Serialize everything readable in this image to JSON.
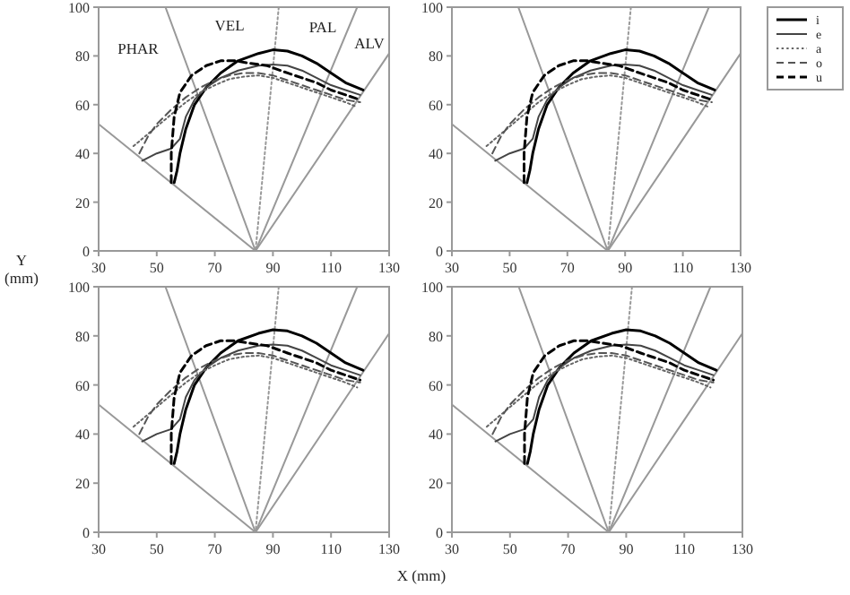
{
  "chart_data": [
    {
      "type": "line",
      "ylabel": "Y (mm)",
      "annotations": [
        "PHAR",
        "VEL",
        "PAL",
        "ALV"
      ],
      "xlim": [
        30,
        130
      ],
      "ylim": [
        0,
        100
      ],
      "xticks": [
        30,
        50,
        70,
        90,
        110,
        130
      ],
      "yticks": [
        0,
        20,
        40,
        60,
        80,
        100
      ],
      "legend": false,
      "marker": "none",
      "series": [
        {
          "color": "#999999",
          "line_style": "solid",
          "x": [
            30,
            84
          ],
          "values": [
            52,
            0
          ]
        },
        {
          "color": "#999999",
          "line_style": "solid",
          "x": [
            53,
            84
          ],
          "values": [
            100,
            0
          ]
        },
        {
          "color": "#999999",
          "line_style": "dotted",
          "x": [
            92,
            84
          ],
          "values": [
            100,
            0
          ]
        },
        {
          "color": "#999999",
          "line_style": "solid",
          "x": [
            119,
            84
          ],
          "values": [
            100,
            0
          ]
        },
        {
          "color": "#999999",
          "line_style": "solid",
          "x": [
            130,
            84
          ],
          "values": [
            81,
            0
          ]
        },
        {
          "color": "#000000",
          "line_style": "solid",
          "x": [
            56,
            57,
            58,
            60,
            63,
            67,
            72,
            78,
            85,
            90,
            95,
            100,
            105,
            110,
            115,
            121
          ],
          "values": [
            28,
            33,
            40,
            50,
            60,
            67,
            73,
            78,
            81,
            82.5,
            82,
            80,
            77,
            73,
            69,
            66
          ]
        },
        {
          "color": "#444444",
          "line_style": "solid",
          "x": [
            45,
            50,
            55,
            58,
            60,
            63,
            67,
            72,
            78,
            85,
            90,
            95,
            100,
            105,
            110,
            115,
            120
          ],
          "values": [
            37,
            40,
            42,
            46,
            55,
            62,
            67,
            71,
            74,
            76,
            76.5,
            76,
            74,
            71,
            68,
            66,
            64
          ]
        },
        {
          "color": "#666666",
          "line_style": "dotted",
          "x": [
            42,
            45,
            50,
            55,
            60,
            65,
            70,
            75,
            80,
            85,
            90,
            95,
            100,
            105,
            110,
            115,
            119
          ],
          "values": [
            43,
            46,
            51,
            56,
            61,
            65,
            68,
            70.5,
            71.5,
            72,
            71,
            69,
            67,
            65,
            63,
            61,
            59
          ]
        },
        {
          "color": "#555555",
          "line_style": "dashed",
          "x": [
            44,
            47,
            50,
            55,
            60,
            65,
            70,
            75,
            80,
            85,
            90,
            95,
            100,
            105,
            110,
            115,
            120
          ],
          "values": [
            40,
            47,
            52,
            58,
            63,
            67,
            70,
            72,
            73,
            73,
            72,
            70,
            68,
            66,
            64,
            62,
            61
          ]
        },
        {
          "color": "#000000",
          "line_style": "dashed",
          "x": [
            55,
            55,
            56,
            58,
            62,
            67,
            72,
            77,
            82,
            88,
            95,
            100,
            105,
            110,
            115,
            120
          ],
          "values": [
            28,
            40,
            55,
            65,
            72,
            76,
            78,
            78,
            77,
            76,
            73,
            71,
            69,
            66,
            64,
            62
          ]
        }
      ]
    },
    {
      "type": "line",
      "xlim": [
        30,
        130
      ],
      "ylim": [
        0,
        100
      ],
      "xticks": [
        30,
        50,
        70,
        90,
        110,
        130
      ],
      "yticks": [
        0,
        20,
        40,
        60,
        80,
        100
      ],
      "legend": "right",
      "marker": "none",
      "series": [
        {
          "color": "#999999",
          "line_style": "solid",
          "x": [
            30,
            84
          ],
          "values": [
            52,
            0
          ]
        },
        {
          "color": "#999999",
          "line_style": "solid",
          "x": [
            53,
            84
          ],
          "values": [
            100,
            0
          ]
        },
        {
          "color": "#999999",
          "line_style": "dotted",
          "x": [
            92,
            84
          ],
          "values": [
            100,
            0
          ]
        },
        {
          "color": "#999999",
          "line_style": "solid",
          "x": [
            119,
            84
          ],
          "values": [
            100,
            0
          ]
        },
        {
          "color": "#999999",
          "line_style": "solid",
          "x": [
            130,
            84
          ],
          "values": [
            81,
            0
          ]
        },
        {
          "name": "i",
          "color": "#000000",
          "line_style": "solid",
          "x": [
            56,
            57,
            58,
            60,
            63,
            67,
            72,
            78,
            85,
            90,
            95,
            100,
            105,
            110,
            115,
            121
          ],
          "values": [
            28,
            33,
            40,
            50,
            60,
            67,
            73,
            78,
            81,
            82.5,
            82,
            80,
            77,
            73,
            69,
            66
          ]
        },
        {
          "name": "e",
          "color": "#444444",
          "line_style": "solid",
          "x": [
            45,
            50,
            55,
            58,
            60,
            63,
            67,
            72,
            78,
            85,
            90,
            95,
            100,
            105,
            110,
            115,
            120
          ],
          "values": [
            37,
            40,
            42,
            46,
            55,
            62,
            67,
            71,
            74,
            76,
            76.5,
            76,
            74,
            71,
            68,
            66,
            64
          ]
        },
        {
          "name": "a",
          "color": "#666666",
          "line_style": "dotted",
          "x": [
            42,
            45,
            50,
            55,
            60,
            65,
            70,
            75,
            80,
            85,
            90,
            95,
            100,
            105,
            110,
            115,
            119
          ],
          "values": [
            43,
            46,
            51,
            56,
            61,
            65,
            68,
            70.5,
            71.5,
            72,
            71,
            69,
            67,
            65,
            63,
            61,
            59
          ]
        },
        {
          "name": "o",
          "color": "#555555",
          "line_style": "dashed",
          "x": [
            44,
            47,
            50,
            55,
            60,
            65,
            70,
            75,
            80,
            85,
            90,
            95,
            100,
            105,
            110,
            115,
            120
          ],
          "values": [
            40,
            47,
            52,
            58,
            63,
            67,
            70,
            72,
            73,
            73,
            72,
            70,
            68,
            66,
            64,
            62,
            61
          ]
        },
        {
          "name": "u",
          "color": "#000000",
          "line_style": "dashed",
          "x": [
            55,
            55,
            56,
            58,
            62,
            67,
            72,
            77,
            82,
            88,
            95,
            100,
            105,
            110,
            115,
            120
          ],
          "values": [
            28,
            40,
            55,
            65,
            72,
            76,
            78,
            78,
            77,
            76,
            73,
            71,
            69,
            66,
            64,
            62
          ]
        }
      ]
    },
    {
      "type": "line",
      "xlabel": "X (mm)",
      "xlim": [
        30,
        130
      ],
      "ylim": [
        0,
        100
      ],
      "xticks": [
        30,
        50,
        70,
        90,
        110,
        130
      ],
      "yticks": [
        0,
        20,
        40,
        60,
        80,
        100
      ],
      "legend": false,
      "marker": "none",
      "series": [
        {
          "color": "#999999",
          "line_style": "solid",
          "x": [
            30,
            84
          ],
          "values": [
            52,
            0
          ]
        },
        {
          "color": "#999999",
          "line_style": "solid",
          "x": [
            53,
            84
          ],
          "values": [
            100,
            0
          ]
        },
        {
          "color": "#999999",
          "line_style": "dotted",
          "x": [
            92,
            84
          ],
          "values": [
            100,
            0
          ]
        },
        {
          "color": "#999999",
          "line_style": "solid",
          "x": [
            119,
            84
          ],
          "values": [
            100,
            0
          ]
        },
        {
          "color": "#999999",
          "line_style": "solid",
          "x": [
            130,
            84
          ],
          "values": [
            81,
            0
          ]
        },
        {
          "color": "#000000",
          "line_style": "solid",
          "x": [
            56,
            57,
            58,
            60,
            63,
            67,
            72,
            78,
            85,
            90,
            95,
            100,
            105,
            110,
            115,
            121
          ],
          "values": [
            28,
            33,
            40,
            50,
            60,
            67,
            73,
            78,
            81,
            82.5,
            82,
            80,
            77,
            73,
            69,
            66
          ]
        },
        {
          "color": "#444444",
          "line_style": "solid",
          "x": [
            45,
            50,
            55,
            58,
            60,
            63,
            67,
            72,
            78,
            85,
            90,
            95,
            100,
            105,
            110,
            115,
            120
          ],
          "values": [
            37,
            40,
            42,
            46,
            55,
            62,
            67,
            71,
            74,
            76,
            76.5,
            76,
            74,
            71,
            68,
            66,
            64
          ]
        },
        {
          "color": "#666666",
          "line_style": "dotted",
          "x": [
            42,
            45,
            50,
            55,
            60,
            65,
            70,
            75,
            80,
            85,
            90,
            95,
            100,
            105,
            110,
            115,
            119
          ],
          "values": [
            43,
            46,
            51,
            56,
            61,
            65,
            68,
            70.5,
            71.5,
            72,
            71,
            69,
            67,
            65,
            63,
            61,
            59
          ]
        },
        {
          "color": "#555555",
          "line_style": "dashed",
          "x": [
            44,
            47,
            50,
            55,
            60,
            65,
            70,
            75,
            80,
            85,
            90,
            95,
            100,
            105,
            110,
            115,
            120
          ],
          "values": [
            40,
            47,
            52,
            58,
            63,
            67,
            70,
            72,
            73,
            73,
            72,
            70,
            68,
            66,
            64,
            62,
            61
          ]
        },
        {
          "color": "#000000",
          "line_style": "dashed",
          "x": [
            55,
            55,
            56,
            58,
            62,
            67,
            72,
            77,
            82,
            88,
            95,
            100,
            105,
            110,
            115,
            120
          ],
          "values": [
            28,
            40,
            55,
            65,
            72,
            76,
            78,
            78,
            77,
            76,
            73,
            71,
            69,
            66,
            64,
            62
          ]
        }
      ]
    },
    {
      "type": "line",
      "xlim": [
        30,
        130
      ],
      "ylim": [
        0,
        100
      ],
      "xticks": [
        30,
        50,
        70,
        90,
        110,
        130
      ],
      "yticks": [
        0,
        20,
        40,
        60,
        80,
        100
      ],
      "legend": false,
      "marker": "none",
      "series": [
        {
          "color": "#999999",
          "line_style": "solid",
          "x": [
            30,
            84
          ],
          "values": [
            52,
            0
          ]
        },
        {
          "color": "#999999",
          "line_style": "solid",
          "x": [
            53,
            84
          ],
          "values": [
            100,
            0
          ]
        },
        {
          "color": "#999999",
          "line_style": "dotted",
          "x": [
            92,
            84
          ],
          "values": [
            100,
            0
          ]
        },
        {
          "color": "#999999",
          "line_style": "solid",
          "x": [
            119,
            84
          ],
          "values": [
            100,
            0
          ]
        },
        {
          "color": "#999999",
          "line_style": "solid",
          "x": [
            130,
            84
          ],
          "values": [
            81,
            0
          ]
        },
        {
          "color": "#000000",
          "line_style": "solid",
          "x": [
            56,
            57,
            58,
            60,
            63,
            67,
            72,
            78,
            85,
            90,
            95,
            100,
            105,
            110,
            115,
            121
          ],
          "values": [
            28,
            33,
            40,
            50,
            60,
            67,
            73,
            78,
            81,
            82.5,
            82,
            80,
            77,
            73,
            69,
            66
          ]
        },
        {
          "color": "#444444",
          "line_style": "solid",
          "x": [
            45,
            50,
            55,
            58,
            60,
            63,
            67,
            72,
            78,
            85,
            90,
            95,
            100,
            105,
            110,
            115,
            120
          ],
          "values": [
            37,
            40,
            42,
            46,
            55,
            62,
            67,
            71,
            74,
            76,
            76.5,
            76,
            74,
            71,
            68,
            66,
            64
          ]
        },
        {
          "color": "#666666",
          "line_style": "dotted",
          "x": [
            42,
            45,
            50,
            55,
            60,
            65,
            70,
            75,
            80,
            85,
            90,
            95,
            100,
            105,
            110,
            115,
            119
          ],
          "values": [
            43,
            46,
            51,
            56,
            61,
            65,
            68,
            70.5,
            71.5,
            72,
            71,
            69,
            67,
            65,
            63,
            61,
            59
          ]
        },
        {
          "color": "#555555",
          "line_style": "dashed",
          "x": [
            44,
            47,
            50,
            55,
            60,
            65,
            70,
            75,
            80,
            85,
            90,
            95,
            100,
            105,
            110,
            115,
            120
          ],
          "values": [
            40,
            47,
            52,
            58,
            63,
            67,
            70,
            72,
            73,
            73,
            72,
            70,
            68,
            66,
            64,
            62,
            61
          ]
        },
        {
          "color": "#000000",
          "line_style": "dashed",
          "x": [
            55,
            55,
            56,
            58,
            62,
            67,
            72,
            77,
            82,
            88,
            95,
            100,
            105,
            110,
            115,
            120
          ],
          "values": [
            28,
            40,
            55,
            65,
            72,
            76,
            78,
            78,
            77,
            76,
            73,
            71,
            69,
            66,
            64,
            62
          ]
        }
      ]
    }
  ]
}
